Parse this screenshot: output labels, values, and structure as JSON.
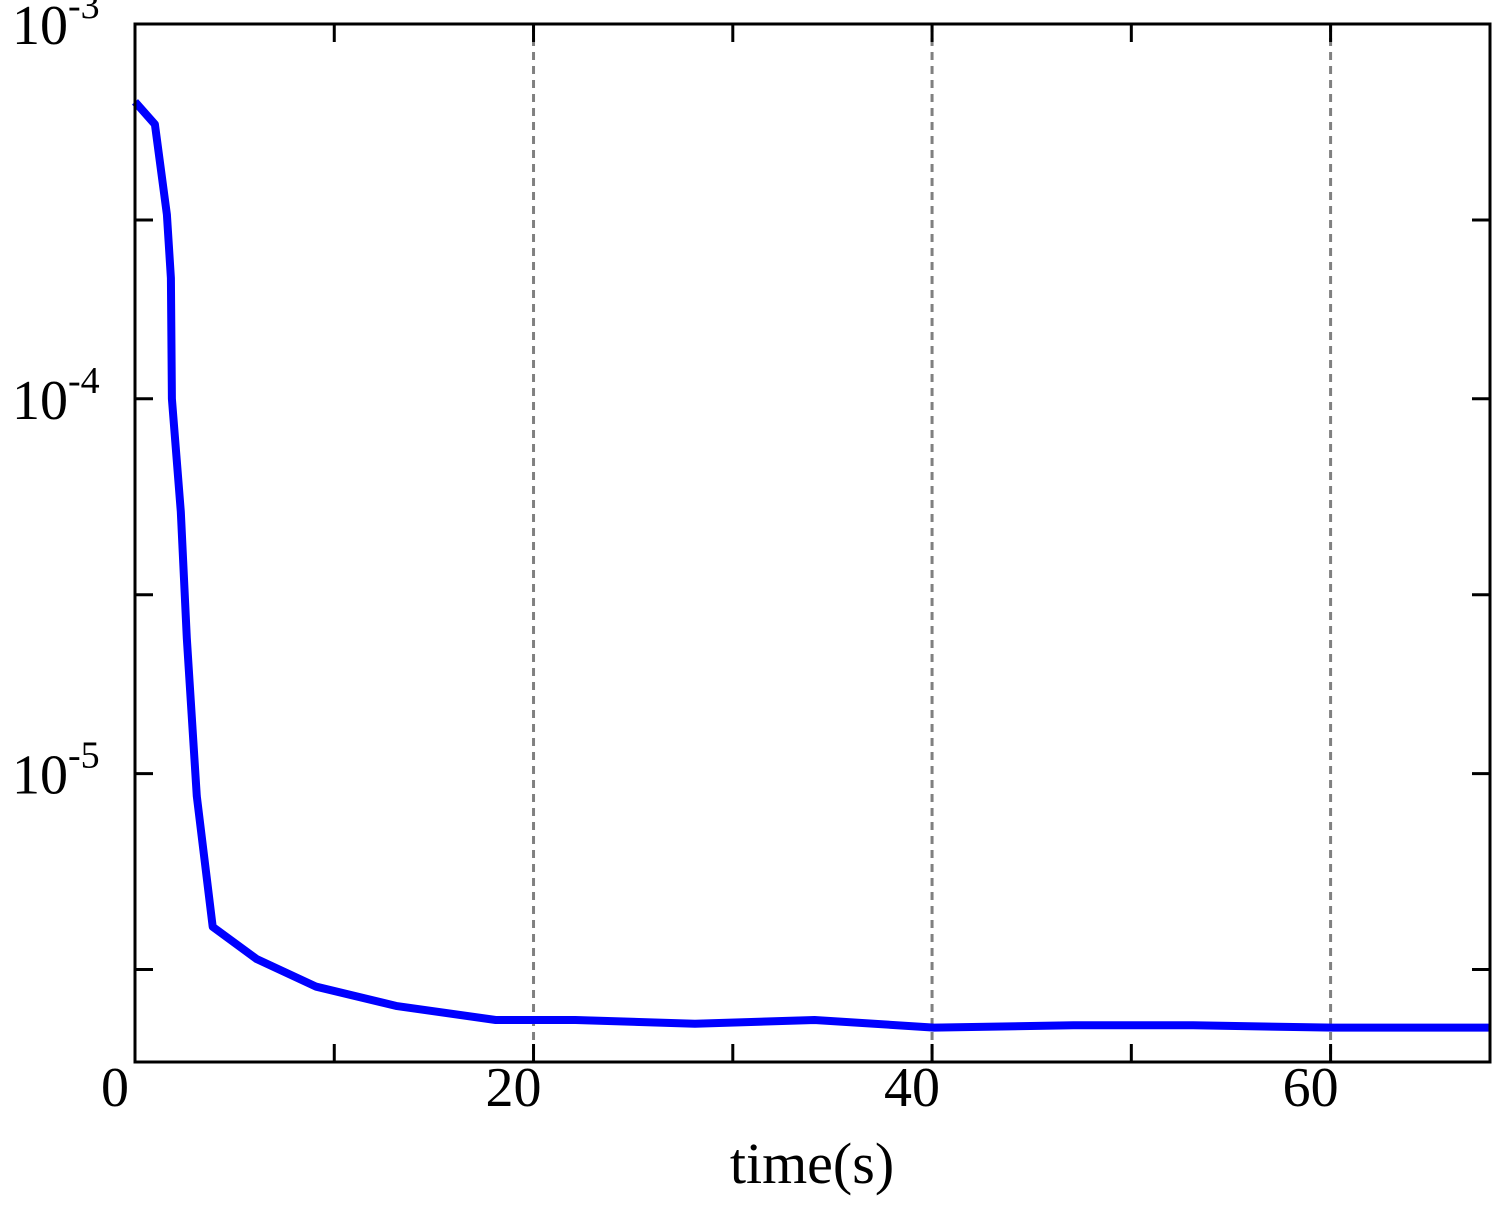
{
  "chart_data": {
    "type": "line",
    "title": "",
    "xlabel": "time(s)",
    "ylabel": "",
    "xlim": [
      0,
      68
    ],
    "ylim": [
      1.7e-06,
      0.001
    ],
    "yscale": "log",
    "x_ticks": [
      {
        "value": 0,
        "label": "0"
      },
      {
        "value": 20,
        "label": "20"
      },
      {
        "value": 40,
        "label": "40"
      },
      {
        "value": 60,
        "label": "60"
      }
    ],
    "y_ticks": [
      {
        "value": 0.001,
        "base": "10",
        "exp": "-3"
      },
      {
        "value": 0.0001,
        "base": "10",
        "exp": "-4"
      },
      {
        "value": 1e-05,
        "base": "10",
        "exp": "-5"
      }
    ],
    "y_minor_ticks": [
      0.0003,
      3e-05,
      3e-06
    ],
    "x_minor_ticks": [
      10,
      30,
      50
    ],
    "vertical_grid": [
      20,
      40,
      60
    ],
    "grid_style": "dashed gray vertical lines",
    "series": [
      {
        "color": "#0000ff",
        "x": [
          0,
          1,
          1.6,
          1.8,
          1.85,
          2.3,
          2.6,
          3.1,
          3.9,
          6.1,
          9.1,
          13.1,
          18.1,
          22.1,
          28.1,
          34.1,
          40.1,
          47.1,
          53.1,
          60.1,
          68
        ],
        "y": [
          0.00062,
          0.00054,
          0.00031,
          0.00021,
          0.0001,
          5e-05,
          2.3e-05,
          8.7e-06,
          3.9e-06,
          3.2e-06,
          2.7e-06,
          2.4e-06,
          2.2e-06,
          2.2e-06,
          2.15e-06,
          2.2e-06,
          2.1e-06,
          2.13e-06,
          2.13e-06,
          2.1e-06,
          2.1e-06
        ]
      }
    ]
  }
}
